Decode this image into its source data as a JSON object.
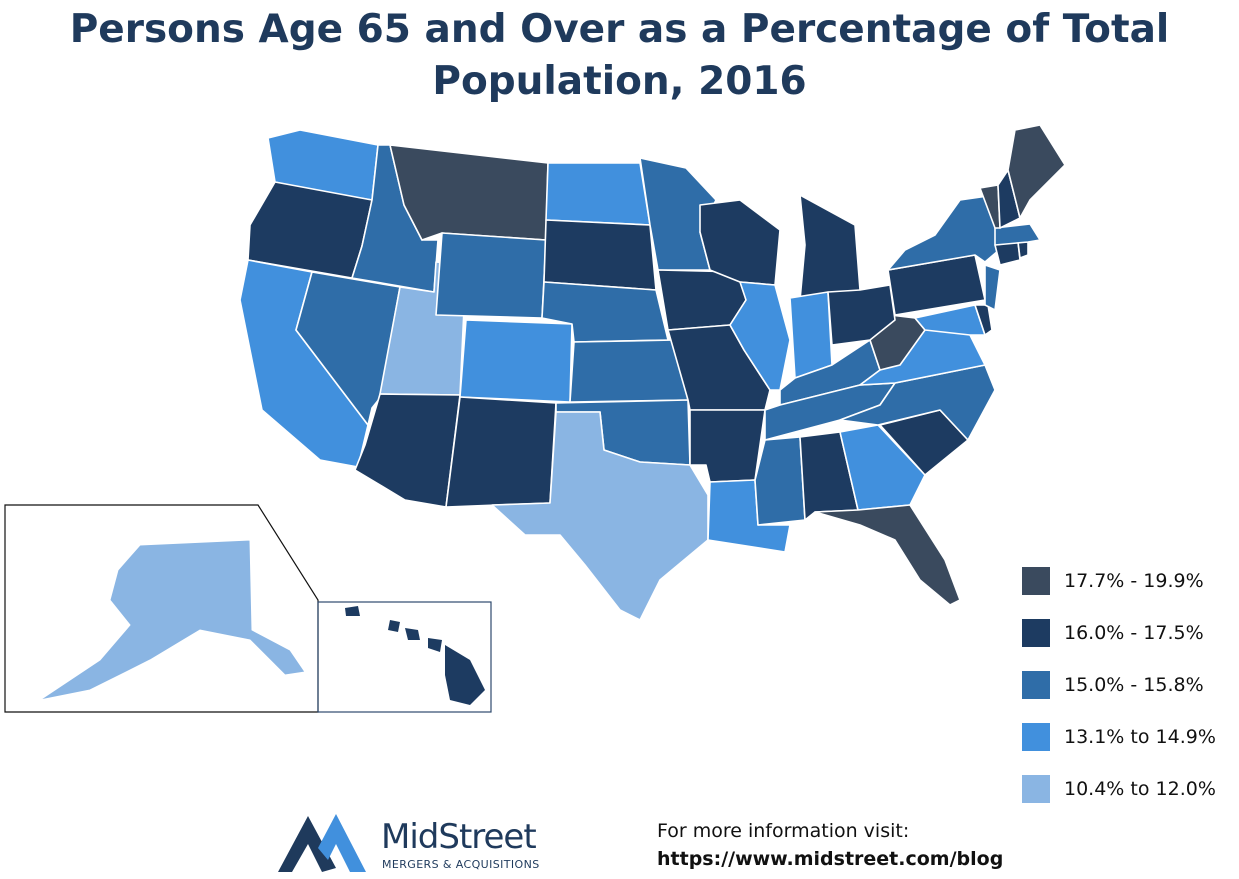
{
  "title": {
    "line1": "Persons Age 65 and Over as a Percentage of Total",
    "line2": "Population, 2016"
  },
  "colors": {
    "c1": "#3a4a5e",
    "c2": "#1d3b61",
    "c3": "#2f6da8",
    "c4": "#4190dd",
    "c5": "#8ab5e3"
  },
  "legend": [
    {
      "label": "17.7% - 19.9%",
      "color": "#3a4a5e"
    },
    {
      "label": "16.0% - 17.5%",
      "color": "#1d3b61"
    },
    {
      "label": "15.0% - 15.8%",
      "color": "#2f6da8"
    },
    {
      "label": "13.1% to 14.9%",
      "color": "#4190dd"
    },
    {
      "label": "10.4% to 12.0%",
      "color": "#8ab5e3"
    }
  ],
  "states": {
    "WA": "c4",
    "OR": "c2",
    "CA": "c4",
    "ID": "c3",
    "NV": "c3",
    "UT": "c5",
    "AZ": "c2",
    "MT": "c1",
    "WY": "c3",
    "CO": "c4",
    "NM": "c2",
    "ND": "c4",
    "SD": "c2",
    "NE": "c3",
    "KS": "c3",
    "OK": "c3",
    "TX": "c5",
    "MN": "c3",
    "IA": "c2",
    "MO": "c2",
    "AR": "c2",
    "LA": "c4",
    "WI": "c2",
    "IL": "c4",
    "MS": "c3",
    "MI": "c2",
    "IN": "c4",
    "KY": "c3",
    "TN": "c3",
    "AL": "c2",
    "OH": "c2",
    "GA": "c4",
    "FL": "c1",
    "SC": "c2",
    "NC": "c3",
    "VA": "c4",
    "WV": "c1",
    "MD": "c4",
    "DE": "c2",
    "PA": "c2",
    "NJ": "c3",
    "NY": "c3",
    "CT": "c2",
    "RI": "c2",
    "MA": "c3",
    "VT": "c1",
    "NH": "c2",
    "ME": "c1",
    "AK": "c5",
    "HI": "c2"
  },
  "logo": {
    "name": "MidStreet",
    "tagline": "MERGERS & ACQUISITIONS",
    "colors": {
      "dark": "#1f3a5c",
      "light": "#4190dd"
    }
  },
  "info": {
    "line1": "For more information visit:",
    "line2": "https://www.midstreet.com/blog"
  }
}
